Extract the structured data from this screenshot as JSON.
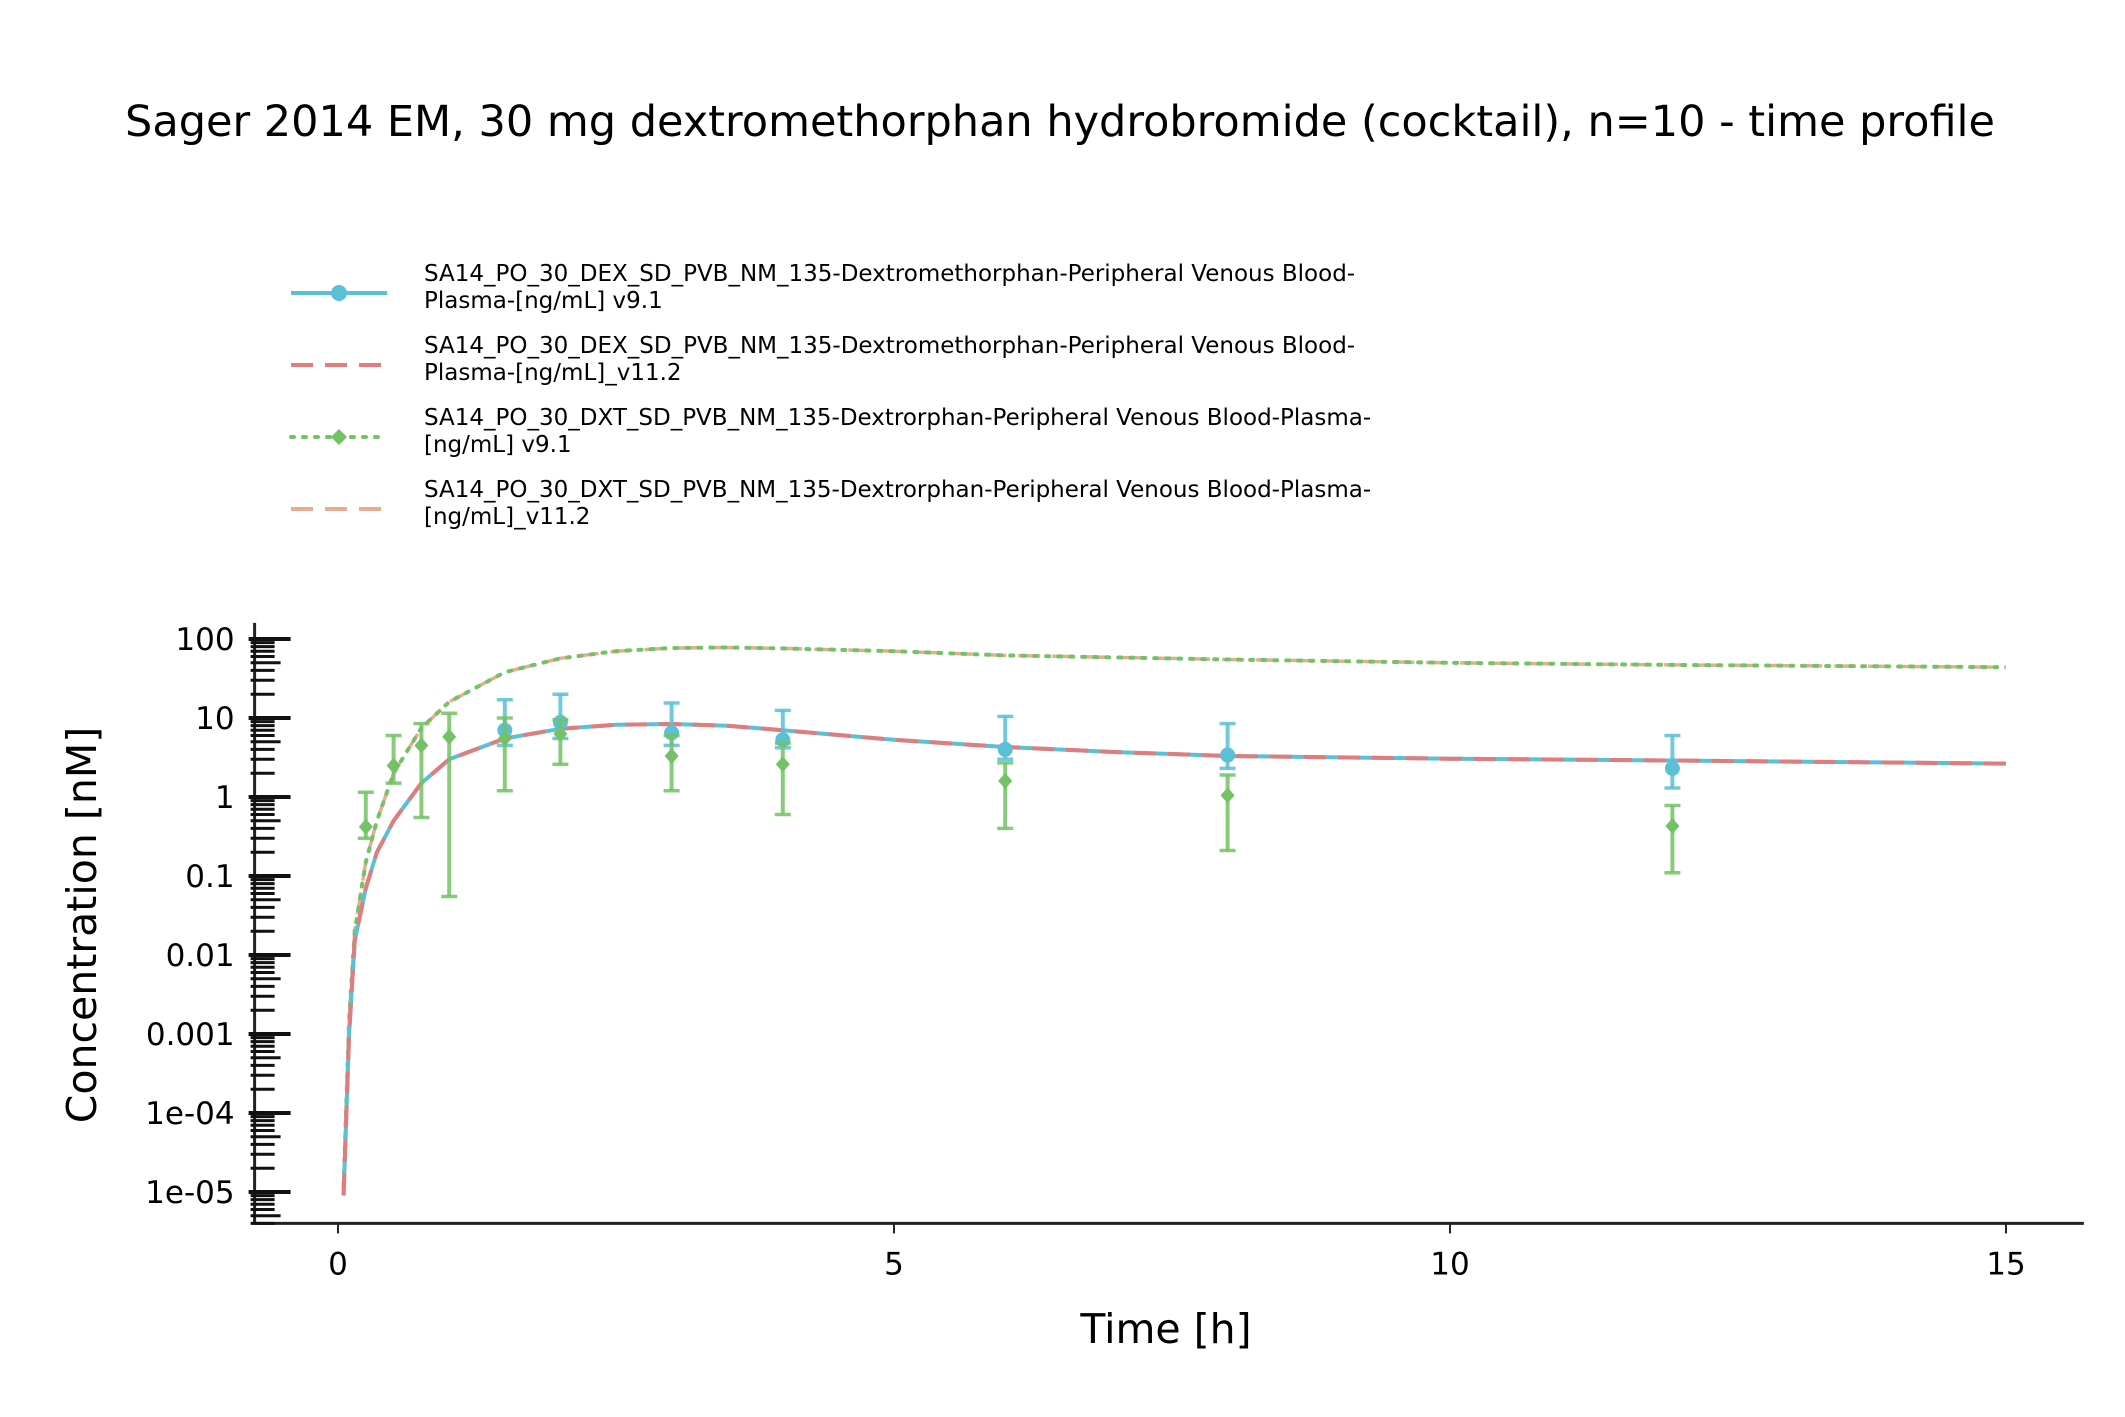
{
  "chart_data": {
    "type": "line",
    "title": "Sager 2014 EM, 30 mg dextromethorphan hydrobromide (cocktail), n=10 - time profile",
    "xlabel": "Time [h]",
    "ylabel": "Concentration [nM]",
    "xlim": [
      -0.75,
      15.7
    ],
    "ylim": [
      4e-06,
      160
    ],
    "yscale": "log",
    "x_ticks": [
      0,
      5,
      10,
      15
    ],
    "y_ticks": [
      {
        "value": 1e-05,
        "label": "1e-05"
      },
      {
        "value": 0.0001,
        "label": "1e-04"
      },
      {
        "value": 0.001,
        "label": "0.001"
      },
      {
        "value": 0.01,
        "label": "0.01"
      },
      {
        "value": 0.1,
        "label": "0.1"
      },
      {
        "value": 1,
        "label": "1"
      },
      {
        "value": 10,
        "label": "10"
      },
      {
        "value": 100,
        "label": "100"
      }
    ],
    "grid": false,
    "legend_position": "top-left",
    "series": [
      {
        "name": "SA14_PO_30_DEX_SD_PVB_NM_135-Dextromethorphan-Peripheral Venous Blood-Plasma-[ng/mL] v9.1",
        "legend_lines": [
          "SA14_PO_30_DEX_SD_PVB_NM_135-Dextromethorphan-Peripheral Venous Blood-",
          "Plasma-[ng/mL] v9.1"
        ],
        "color": "#5bc0d6",
        "line": "solid",
        "marker": "circle",
        "x": [
          0.05,
          0.1,
          0.15,
          0.25,
          0.35,
          0.5,
          0.75,
          1,
          1.5,
          2,
          2.5,
          3,
          3.5,
          4,
          5,
          6,
          7,
          8,
          10,
          12,
          15
        ],
        "y": [
          9e-06,
          0.001,
          0.015,
          0.07,
          0.2,
          0.5,
          1.5,
          3.0,
          5.5,
          7.3,
          8.2,
          8.4,
          8.0,
          7.0,
          5.3,
          4.3,
          3.7,
          3.3,
          3.05,
          2.9,
          2.65
        ],
        "obs": [
          {
            "x": 1.5,
            "y": 7.0,
            "lo": 4.5,
            "hi": 17
          },
          {
            "x": 2,
            "y": 8.8,
            "lo": 5.5,
            "hi": 20
          },
          {
            "x": 3,
            "y": 6.5,
            "lo": 4.5,
            "hi": 15.5
          },
          {
            "x": 4,
            "y": 5.3,
            "lo": 4.2,
            "hi": 12.5
          },
          {
            "x": 6,
            "y": 4.0,
            "lo": 3.0,
            "hi": 10.5
          },
          {
            "x": 8,
            "y": 3.4,
            "lo": 2.3,
            "hi": 8.5
          },
          {
            "x": 12,
            "y": 2.3,
            "lo": 1.3,
            "hi": 6.0
          }
        ]
      },
      {
        "name": "SA14_PO_30_DEX_SD_PVB_NM_135-Dextromethorphan-Peripheral Venous Blood-Plasma-[ng/mL]_v11.2",
        "legend_lines": [
          "SA14_PO_30_DEX_SD_PVB_NM_135-Dextromethorphan-Peripheral Venous Blood-",
          "Plasma-[ng/mL]_v11.2"
        ],
        "color": "#e07c7c",
        "line": "dashed",
        "marker": "none",
        "x": [
          0.05,
          0.1,
          0.15,
          0.25,
          0.35,
          0.5,
          0.75,
          1,
          1.5,
          2,
          2.5,
          3,
          3.5,
          4,
          5,
          6,
          7,
          8,
          10,
          12,
          15
        ],
        "y": [
          9e-06,
          0.001,
          0.015,
          0.07,
          0.2,
          0.5,
          1.5,
          3.0,
          5.5,
          7.3,
          8.2,
          8.4,
          8.0,
          7.0,
          5.3,
          4.3,
          3.7,
          3.3,
          3.05,
          2.9,
          2.65
        ]
      },
      {
        "name": "SA14_PO_30_DXT_SD_PVB_NM_135-Dextrorphan-Peripheral Venous Blood-Plasma-[ng/mL] v9.1",
        "legend_lines": [
          "SA14_PO_30_DXT_SD_PVB_NM_135-Dextrorphan-Peripheral Venous Blood-Plasma-",
          "[ng/mL] v9.1"
        ],
        "color": "#74c266",
        "line": "dotted",
        "marker": "diamond",
        "x": [
          0.05,
          0.1,
          0.15,
          0.25,
          0.35,
          0.5,
          0.75,
          1,
          1.5,
          2,
          2.5,
          3,
          3.5,
          4,
          5,
          6,
          8,
          10,
          12,
          15
        ],
        "y": [
          1.2e-05,
          0.0015,
          0.02,
          0.15,
          0.5,
          2.0,
          7.5,
          16,
          38,
          57,
          70,
          77,
          78,
          76,
          70,
          62,
          55,
          50,
          47,
          44
        ],
        "obs": [
          {
            "x": 0.25,
            "y": 0.42,
            "lo": 0.3,
            "hi": 1.15
          },
          {
            "x": 0.5,
            "y": 2.5,
            "lo": 1.5,
            "hi": 6.0
          },
          {
            "x": 0.75,
            "y": 4.5,
            "lo": 0.55,
            "hi": 8.5
          },
          {
            "x": 1,
            "y": 5.8,
            "lo": 0.055,
            "hi": 11.5
          },
          {
            "x": 1.5,
            "y": 5.5,
            "lo": 1.2,
            "hi": 10.0
          },
          {
            "x": 2,
            "y": 6.3,
            "lo": 2.6,
            "hi": 9.5
          },
          {
            "x": 3,
            "y": 3.3,
            "lo": 1.2,
            "hi": 6.0
          },
          {
            "x": 4,
            "y": 2.6,
            "lo": 0.6,
            "hi": 4.8
          },
          {
            "x": 6,
            "y": 1.6,
            "lo": 0.4,
            "hi": 2.7
          },
          {
            "x": 8,
            "y": 1.05,
            "lo": 0.21,
            "hi": 1.9
          },
          {
            "x": 12,
            "y": 0.43,
            "lo": 0.11,
            "hi": 0.78
          }
        ]
      },
      {
        "name": "SA14_PO_30_DXT_SD_PVB_NM_135-Dextrorphan-Peripheral Venous Blood-Plasma-[ng/mL]_v11.2",
        "legend_lines": [
          "SA14_PO_30_DXT_SD_PVB_NM_135-Dextrorphan-Peripheral Venous Blood-Plasma-",
          "[ng/mL]_v11.2"
        ],
        "color": "#e8ad90",
        "line": "dashed",
        "marker": "none",
        "x": [
          0.05,
          0.1,
          0.15,
          0.25,
          0.35,
          0.5,
          0.75,
          1,
          1.5,
          2,
          2.5,
          3,
          3.5,
          4,
          5,
          6,
          8,
          10,
          12,
          15
        ],
        "y": [
          1.2e-05,
          0.0015,
          0.02,
          0.15,
          0.5,
          2.0,
          7.5,
          16,
          38,
          57,
          70,
          77,
          78,
          76,
          70,
          62,
          55,
          50,
          47,
          44
        ]
      }
    ]
  }
}
